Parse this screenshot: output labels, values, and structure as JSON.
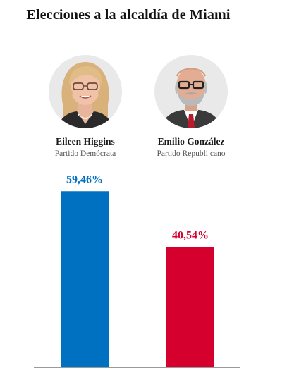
{
  "title": "Elecciones a la alcaldía de Miami",
  "candidates": [
    {
      "name": "Eileen Higgins",
      "party": "Partido Demócrata",
      "photo_icon": "avatar-woman-blonde-glasses-icon",
      "color": "#0071c1"
    },
    {
      "name": "Emilio González",
      "party": "Partido  Republi cano",
      "photo_icon": "avatar-man-gray-beard-glasses-icon",
      "color": "#d6002e"
    }
  ],
  "chart_data": {
    "type": "bar",
    "title": "Elecciones a la alcaldía de Miami",
    "categories": [
      "Eileen Higgins",
      "Emilio González"
    ],
    "values": [
      59.46,
      40.54
    ],
    "value_labels": [
      "59,46%",
      "40,54%"
    ],
    "colors": [
      "#0071c1",
      "#d6002e"
    ],
    "xlabel": "",
    "ylabel": "",
    "ylim": [
      0,
      65
    ],
    "grid": false,
    "legend": "none"
  }
}
